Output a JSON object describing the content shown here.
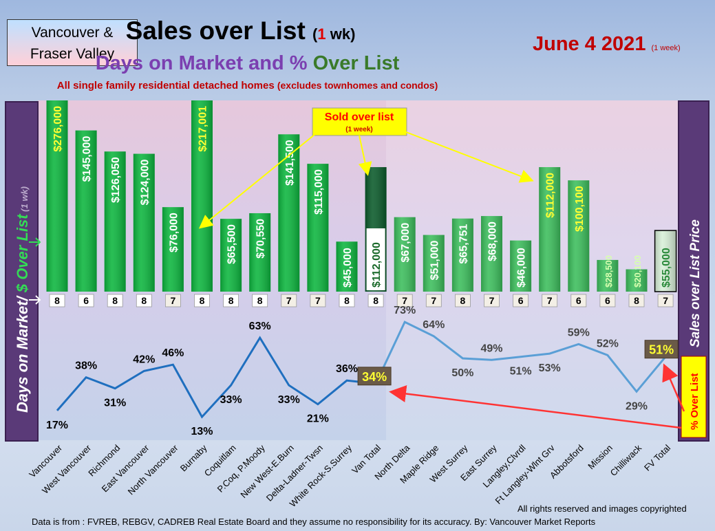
{
  "header": {
    "region": [
      "Vancouver &",
      "Fraser Valley"
    ],
    "title": "Sales over List",
    "title_paren_open": "(",
    "title_num": "1",
    "title_paren_rest": " wk)",
    "subtitle_a": "Days on Market and % ",
    "subtitle_b": "Over List",
    "description": "All single family residential detached homes",
    "description_note": "(excludes townhomes and condos)",
    "date": "June 4  2021",
    "date_note": "(1 week)"
  },
  "callout": {
    "label": "Sold over list",
    "note": "(1 week)"
  },
  "side_labels": {
    "left_a": "Days on Market/ ",
    "left_b": "$ Over List",
    "left_c": " (1 wk)",
    "right": "Sales over List Price",
    "pct_box": "% Over List"
  },
  "footer": {
    "rights": "All rights reserved and  images copyrighted",
    "source": "Data is from : FVREB, REBGV, CADREB Real Estate Board and they assume no responsibility for its accuracy. By: Vancouver Market Reports"
  },
  "colors": {
    "van_bar": "#0cb63e",
    "van_total_bar": "#0a5a2a",
    "fv_bar": "#3cbe5c",
    "line": "#1f6fbf",
    "fv_line": "#5a9fd6",
    "accent_yellow": "#ffff00",
    "arrow_red": "#ff3333"
  },
  "chart_data": {
    "type": "bar",
    "categories": [
      "Vancouver",
      "West Vancouver",
      "Richmond",
      "East Vancouver",
      "North Vancouver",
      "Burnaby",
      "Coquitlam",
      "P.Coq, P.Moody",
      "New West-E.Burn",
      "Delta-Ladner-Twsn",
      "White Rock-S.Surrey",
      "Van Total",
      "North Delta",
      "Maple Ridge",
      "West Surrey",
      "East Surrey",
      "Langley,Clvrdl",
      "Ft Langley-Wlnt Grv",
      "Abbotsford",
      "Mission",
      "Chilliwack",
      "FV Total"
    ],
    "series": [
      {
        "name": "$ Over List",
        "values": [
          276000,
          145000,
          126050,
          124000,
          76000,
          217001,
          65500,
          70550,
          141500,
          115000,
          45000,
          112000,
          67000,
          51000,
          65751,
          68000,
          46000,
          112000,
          100100,
          28500,
          20100,
          55000
        ],
        "labels": [
          "$276,000",
          "$145,000",
          "$126,050",
          "$124,000",
          "$76,000",
          "$217,001",
          "$65,500",
          "$70,550",
          "$141,500",
          "$115,000",
          "$45,000",
          "$112,000",
          "$67,000",
          "$51,000",
          "$65,751",
          "$68,000",
          "$46,000",
          "$112,000",
          "$100,100",
          "$28,500",
          "$20,100",
          "$55,000"
        ]
      },
      {
        "name": "Days on Market",
        "values": [
          8,
          6,
          8,
          8,
          7,
          8,
          8,
          8,
          7,
          7,
          8,
          8,
          7,
          7,
          8,
          7,
          6,
          7,
          6,
          6,
          8,
          7
        ]
      },
      {
        "name": "% Over List",
        "values": [
          17,
          38,
          31,
          42,
          46,
          13,
          33,
          63,
          33,
          21,
          36,
          34,
          73,
          64,
          50,
          49,
          51,
          53,
          59,
          52,
          29,
          51
        ],
        "labels": [
          "17%",
          "38%",
          "31%",
          "42%",
          "46%",
          "13%",
          "33%",
          "63%",
          "33%",
          "21%",
          "36%",
          "34%",
          "73%",
          "64%",
          "50%",
          "49%",
          "51%",
          "53%",
          "59%",
          "52%",
          "29%",
          "51%"
        ]
      }
    ],
    "groups": [
      {
        "name": "Vancouver",
        "categories": [
          0,
          10
        ],
        "total": 11
      },
      {
        "name": "Fraser Valley",
        "categories": [
          12,
          20
        ],
        "total": 21
      }
    ]
  }
}
